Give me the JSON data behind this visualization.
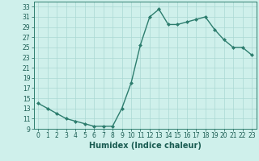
{
  "x": [
    0,
    1,
    2,
    3,
    4,
    5,
    6,
    7,
    8,
    9,
    10,
    11,
    12,
    13,
    14,
    15,
    16,
    17,
    18,
    19,
    20,
    21,
    22,
    23
  ],
  "y": [
    14,
    13,
    12,
    11,
    10.5,
    10,
    9.5,
    9.5,
    9.5,
    13,
    18,
    25.5,
    31,
    32.5,
    29.5,
    29.5,
    30,
    30.5,
    31,
    28.5,
    26.5,
    25,
    25,
    23.5
  ],
  "line_color": "#2d7d6e",
  "marker": "D",
  "marker_size": 2.0,
  "bg_color": "#cff0eb",
  "grid_color": "#aad9d3",
  "xlabel": "Humidex (Indice chaleur)",
  "xlim": [
    -0.5,
    23.5
  ],
  "ylim": [
    9,
    34
  ],
  "yticks": [
    9,
    11,
    13,
    15,
    17,
    19,
    21,
    23,
    25,
    27,
    29,
    31,
    33
  ],
  "xticks": [
    0,
    1,
    2,
    3,
    4,
    5,
    6,
    7,
    8,
    9,
    10,
    11,
    12,
    13,
    14,
    15,
    16,
    17,
    18,
    19,
    20,
    21,
    22,
    23
  ],
  "tick_label_fontsize": 5.5,
  "xlabel_fontsize": 7.0,
  "line_width": 1.0
}
